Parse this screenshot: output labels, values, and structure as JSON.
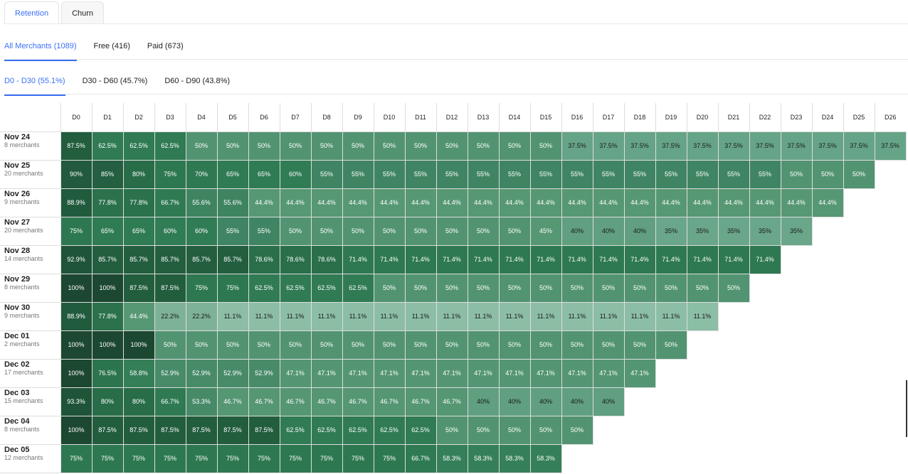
{
  "tabs": [
    {
      "label": "Retention",
      "active": true
    },
    {
      "label": "Churn",
      "active": false
    }
  ],
  "segments": [
    {
      "label": "All Merchants (1089)",
      "active": true
    },
    {
      "label": "Free (416)"
    },
    {
      "label": "Paid (673)"
    }
  ],
  "ranges": [
    {
      "label": "D0 - D30 (55.1%)",
      "active": true
    },
    {
      "label": "D30 - D60 (45.7%)"
    },
    {
      "label": "D60 - D90 (43.8%)"
    }
  ],
  "chart_data": {
    "type": "heatmap",
    "columns": [
      "D0",
      "D1",
      "D2",
      "D3",
      "D4",
      "D5",
      "D6",
      "D7",
      "D8",
      "D9",
      "D10",
      "D11",
      "D12",
      "D13",
      "D14",
      "D15",
      "D16",
      "D17",
      "D18",
      "D19",
      "D20",
      "D21",
      "D22",
      "D23",
      "D24",
      "D25",
      "D26"
    ],
    "rows": [
      {
        "cohort": "Nov 24",
        "size": "8 merchants",
        "values": [
          87.5,
          62.5,
          62.5,
          62.5,
          50,
          50,
          50,
          50,
          50,
          50,
          50,
          50,
          50,
          50,
          50,
          50,
          37.5,
          37.5,
          37.5,
          37.5,
          37.5,
          37.5,
          37.5,
          37.5,
          37.5,
          37.5,
          37.5
        ]
      },
      {
        "cohort": "Nov 25",
        "size": "20 merchants",
        "values": [
          90,
          85,
          80,
          75,
          70,
          65,
          65,
          60,
          55,
          55,
          55,
          55,
          55,
          55,
          55,
          55,
          55,
          55,
          55,
          55,
          55,
          55,
          55,
          50,
          50,
          50
        ]
      },
      {
        "cohort": "Nov 26",
        "size": "9 merchants",
        "values": [
          88.9,
          77.8,
          77.8,
          66.7,
          55.6,
          55.6,
          44.4,
          44.4,
          44.4,
          44.4,
          44.4,
          44.4,
          44.4,
          44.4,
          44.4,
          44.4,
          44.4,
          44.4,
          44.4,
          44.4,
          44.4,
          44.4,
          44.4,
          44.4,
          44.4
        ]
      },
      {
        "cohort": "Nov 27",
        "size": "20 merchants",
        "values": [
          75,
          65,
          65,
          60,
          60,
          55,
          55,
          50,
          50,
          50,
          50,
          50,
          50,
          50,
          50,
          45,
          40,
          40,
          40,
          35,
          35,
          35,
          35,
          35
        ]
      },
      {
        "cohort": "Nov 28",
        "size": "14 merchants",
        "values": [
          92.9,
          85.7,
          85.7,
          85.7,
          85.7,
          85.7,
          78.6,
          78.6,
          78.6,
          71.4,
          71.4,
          71.4,
          71.4,
          71.4,
          71.4,
          71.4,
          71.4,
          71.4,
          71.4,
          71.4,
          71.4,
          71.4,
          71.4
        ]
      },
      {
        "cohort": "Nov 29",
        "size": "8 merchants",
        "values": [
          100,
          100,
          87.5,
          87.5,
          75,
          75,
          62.5,
          62.5,
          62.5,
          62.5,
          50,
          50,
          50,
          50,
          50,
          50,
          50,
          50,
          50,
          50,
          50,
          50
        ]
      },
      {
        "cohort": "Nov 30",
        "size": "9 merchants",
        "values": [
          88.9,
          77.8,
          44.4,
          22.2,
          22.2,
          11.1,
          11.1,
          11.1,
          11.1,
          11.1,
          11.1,
          11.1,
          11.1,
          11.1,
          11.1,
          11.1,
          11.1,
          11.1,
          11.1,
          11.1,
          11.1
        ]
      },
      {
        "cohort": "Dec 01",
        "size": "2 merchants",
        "values": [
          100,
          100,
          100,
          50,
          50,
          50,
          50,
          50,
          50,
          50,
          50,
          50,
          50,
          50,
          50,
          50,
          50,
          50,
          50,
          50
        ]
      },
      {
        "cohort": "Dec 02",
        "size": "17 merchants",
        "values": [
          100,
          76.5,
          58.8,
          52.9,
          52.9,
          52.9,
          52.9,
          47.1,
          47.1,
          47.1,
          47.1,
          47.1,
          47.1,
          47.1,
          47.1,
          47.1,
          47.1,
          47.1,
          47.1
        ]
      },
      {
        "cohort": "Dec 03",
        "size": "15 merchants",
        "values": [
          93.3,
          80,
          80,
          66.7,
          53.3,
          46.7,
          46.7,
          46.7,
          46.7,
          46.7,
          46.7,
          46.7,
          46.7,
          40,
          40,
          40,
          40,
          40
        ]
      },
      {
        "cohort": "Dec 04",
        "size": "8 merchants",
        "values": [
          100,
          87.5,
          87.5,
          87.5,
          87.5,
          87.5,
          87.5,
          62.5,
          62.5,
          62.5,
          62.5,
          62.5,
          50,
          50,
          50,
          50,
          50
        ]
      },
      {
        "cohort": "Dec 05",
        "size": "12 merchants",
        "values": [
          75,
          75,
          75,
          75,
          75,
          75,
          75,
          75,
          75,
          75,
          75,
          66.7,
          58.3,
          58.3,
          58.3,
          58.3
        ]
      }
    ]
  }
}
